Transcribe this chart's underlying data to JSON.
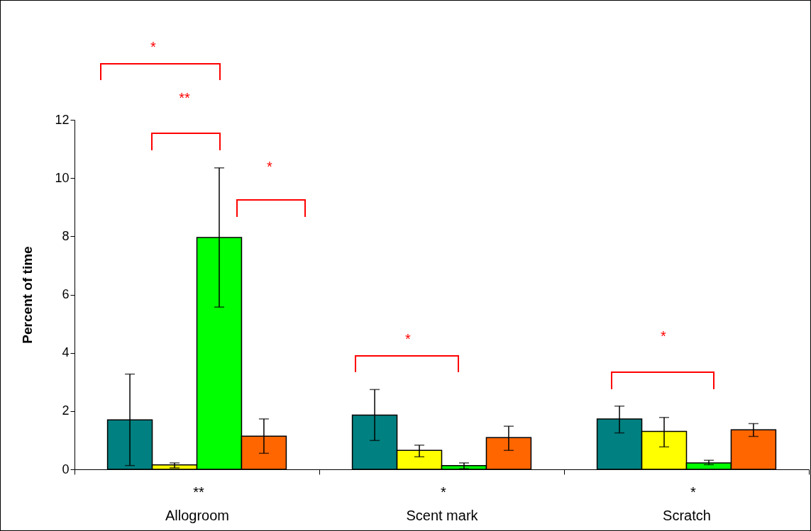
{
  "chart_data": {
    "type": "bar",
    "ylabel": "Percent of time",
    "categories": [
      "Allogroom",
      "Scent mark",
      "Scratch"
    ],
    "series": [
      {
        "color": "#008080",
        "values": [
          1.7,
          1.86,
          1.73
        ],
        "errors": [
          [
            0.13,
            3.27
          ],
          [
            0.99,
            2.74
          ],
          [
            1.25,
            2.17
          ]
        ]
      },
      {
        "color": "#ffff00",
        "values": [
          0.15,
          0.65,
          1.3
        ],
        "errors": [
          [
            0.05,
            0.22
          ],
          [
            0.43,
            0.83
          ],
          [
            0.77,
            1.78
          ]
        ]
      },
      {
        "color": "#00ff00",
        "values": [
          7.96,
          0.13,
          0.22
        ],
        "errors": [
          [
            5.57,
            10.35
          ],
          [
            0.02,
            0.22
          ],
          [
            0.16,
            0.31
          ]
        ]
      },
      {
        "color": "#ff6600",
        "values": [
          1.14,
          1.09,
          1.36
        ],
        "errors": [
          [
            0.55,
            1.73
          ],
          [
            0.65,
            1.48
          ],
          [
            1.13,
            1.57
          ]
        ]
      }
    ],
    "ylim": [
      0,
      12
    ],
    "yticks": [
      0,
      2,
      4,
      6,
      8,
      10,
      12
    ],
    "grid": false,
    "legend": false,
    "annotations": [
      "*",
      "**",
      "*",
      "*",
      "*",
      "**",
      "*",
      "*"
    ]
  }
}
